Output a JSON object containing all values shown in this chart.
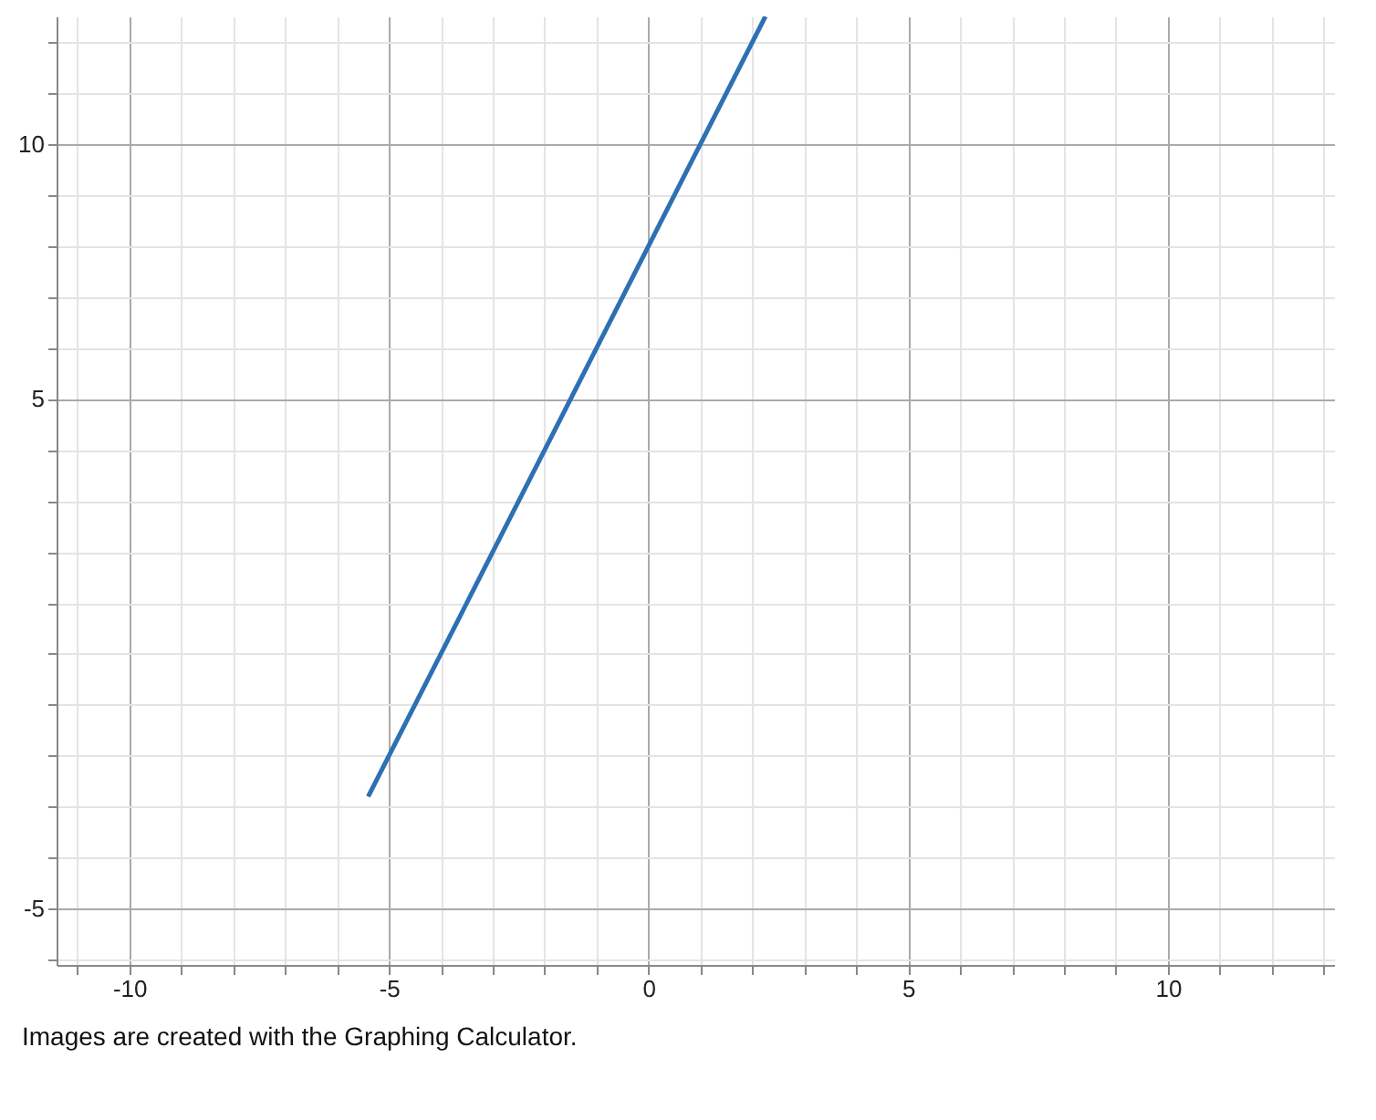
{
  "chart_data": {
    "type": "line",
    "x": [
      -5.4,
      2.25
    ],
    "series": [
      {
        "color": "#2d70b3",
        "values": [
          -2.8,
          12.5
        ]
      }
    ],
    "xlim": [
      -11.4,
      13.2
    ],
    "ylim": [
      -6.1,
      12.5
    ],
    "xticks": [
      {
        "value": -11,
        "label": null
      },
      -10,
      {
        "value": -9,
        "label": null
      },
      {
        "value": -8,
        "label": null
      },
      {
        "value": -7,
        "label": null
      },
      {
        "value": -6,
        "label": null
      },
      -5,
      {
        "value": -4,
        "label": null
      },
      {
        "value": -3,
        "label": null
      },
      {
        "value": -2,
        "label": null
      },
      {
        "value": -1,
        "label": null
      },
      0,
      {
        "value": 1,
        "label": null
      },
      {
        "value": 2,
        "label": null
      },
      {
        "value": 3,
        "label": null
      },
      {
        "value": 4,
        "label": null
      },
      5,
      {
        "value": 6,
        "label": null
      },
      {
        "value": 7,
        "label": null
      },
      {
        "value": 8,
        "label": null
      },
      {
        "value": 9,
        "label": null
      },
      10,
      {
        "value": 11,
        "label": null
      },
      {
        "value": 12,
        "label": null
      },
      {
        "value": 13,
        "label": null
      }
    ],
    "yticks": [
      {
        "value": -6,
        "label": null
      },
      -5,
      {
        "value": -4,
        "label": null
      },
      {
        "value": -3,
        "label": null
      },
      {
        "value": -2,
        "label": null
      },
      {
        "value": -1,
        "label": null
      },
      {
        "value": 0,
        "label": null
      },
      {
        "value": 1,
        "label": null
      },
      {
        "value": 2,
        "label": null
      },
      {
        "value": 3,
        "label": null
      },
      {
        "value": 4,
        "label": null
      },
      5,
      {
        "value": 6,
        "label": null
      },
      {
        "value": 7,
        "label": null
      },
      {
        "value": 8,
        "label": null
      },
      {
        "value": 9,
        "label": null
      },
      10,
      {
        "value": 11,
        "label": null
      },
      {
        "value": 12,
        "label": null
      }
    ],
    "grid": true,
    "annotations": [
      "Images are created with the Graphing Calculator."
    ]
  }
}
